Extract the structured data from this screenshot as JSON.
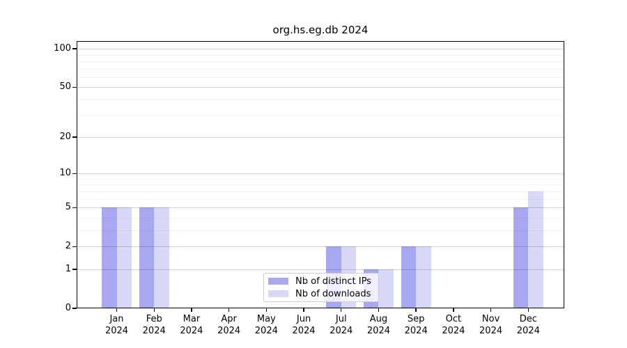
{
  "title": "org.hs.eg.db 2024",
  "colors": {
    "ips": "#a8a8f0",
    "downloads": "#d8d8f8",
    "grid_major": "rgba(0,0,0,0.18)",
    "grid_minor": "rgba(0,0,0,0.05)",
    "axis": "#000000",
    "legend_border": "#cccccc"
  },
  "legend": {
    "items": [
      {
        "label": "Nb of distinct IPs",
        "color_key": "ips"
      },
      {
        "label": "Nb of downloads",
        "color_key": "downloads"
      }
    ]
  },
  "chart_data": {
    "type": "bar",
    "title": "org.hs.eg.db 2024",
    "categories": [
      "Jan 2024",
      "Feb 2024",
      "Mar 2024",
      "Apr 2024",
      "May 2024",
      "Jun 2024",
      "Jul 2024",
      "Aug 2024",
      "Sep 2024",
      "Oct 2024",
      "Nov 2024",
      "Dec 2024"
    ],
    "series": [
      {
        "name": "Nb of distinct IPs",
        "values": [
          5,
          5,
          0,
          0,
          0,
          0,
          2,
          1,
          2,
          0,
          0,
          5
        ]
      },
      {
        "name": "Nb of downloads",
        "values": [
          5,
          5,
          0,
          0,
          0,
          0,
          2,
          1,
          2,
          0,
          0,
          7
        ]
      }
    ],
    "xlabel": "",
    "ylabel": "",
    "yscale": "log1p",
    "yticks": [
      0,
      1,
      2,
      5,
      10,
      20,
      50,
      100
    ],
    "minor_gridlines": [
      3,
      4,
      6,
      7,
      8,
      9,
      30,
      40,
      60,
      70,
      80,
      90
    ],
    "ylim": [
      0,
      115
    ],
    "grid": true,
    "legend_position": "lower center"
  }
}
